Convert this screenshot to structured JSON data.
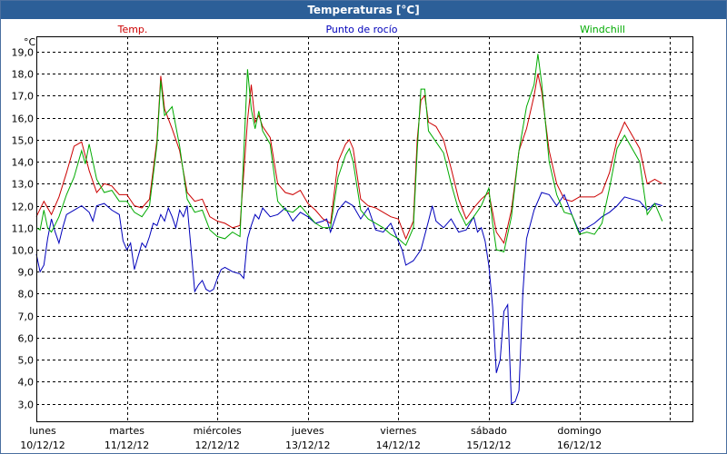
{
  "window": {
    "title": "Temperaturas [°C]"
  },
  "chart_data": {
    "type": "line",
    "title": "Temperaturas [°C]",
    "ylabel": "°C",
    "ylim": [
      2.2,
      19.7
    ],
    "yticks": [
      "3,0",
      "4,0",
      "5,0",
      "6,0",
      "7,0",
      "8,0",
      "9,0",
      "10,0",
      "11,0",
      "12,0",
      "13,0",
      "14,0",
      "15,0",
      "16,0",
      "17,0",
      "18,0",
      "19,0"
    ],
    "xlim_hours": [
      0,
      174
    ],
    "days": [
      {
        "name": "lunes",
        "date": "10/12/12",
        "x": 0
      },
      {
        "name": "martes",
        "date": "11/12/12",
        "x": 24
      },
      {
        "name": "miércoles",
        "date": "12/12/12",
        "x": 48
      },
      {
        "name": "jueves",
        "date": "13/12/12",
        "x": 72
      },
      {
        "name": "viernes",
        "date": "14/12/12",
        "x": 96
      },
      {
        "name": "sábado",
        "date": "15/12/12",
        "x": 120
      },
      {
        "name": "domingo",
        "date": "16/12/12",
        "x": 144
      }
    ],
    "grid": true,
    "legend_placement": "top",
    "series": [
      {
        "name": "Temp.",
        "color": "#cc0000",
        "points": [
          [
            0,
            11.5
          ],
          [
            2,
            12.2
          ],
          [
            4,
            11.6
          ],
          [
            6,
            12.4
          ],
          [
            8,
            13.5
          ],
          [
            10,
            14.7
          ],
          [
            12,
            14.9
          ],
          [
            14,
            13.6
          ],
          [
            16,
            12.6
          ],
          [
            18,
            13.0
          ],
          [
            20,
            12.9
          ],
          [
            22,
            12.5
          ],
          [
            24,
            12.5
          ],
          [
            26,
            12.0
          ],
          [
            28,
            11.9
          ],
          [
            30,
            12.3
          ],
          [
            32,
            15.0
          ],
          [
            33,
            17.9
          ],
          [
            34,
            16.4
          ],
          [
            36,
            15.5
          ],
          [
            38,
            14.5
          ],
          [
            40,
            12.6
          ],
          [
            42,
            12.2
          ],
          [
            44,
            12.3
          ],
          [
            46,
            11.5
          ],
          [
            48,
            11.3
          ],
          [
            50,
            11.2
          ],
          [
            52,
            11.0
          ],
          [
            54,
            11.1
          ],
          [
            56,
            15.9
          ],
          [
            57,
            17.5
          ],
          [
            58,
            15.8
          ],
          [
            59,
            16.1
          ],
          [
            60,
            15.6
          ],
          [
            62,
            15.1
          ],
          [
            64,
            13.0
          ],
          [
            66,
            12.6
          ],
          [
            68,
            12.5
          ],
          [
            70,
            12.7
          ],
          [
            72,
            12.1
          ],
          [
            74,
            11.8
          ],
          [
            76,
            11.4
          ],
          [
            78,
            11.2
          ],
          [
            80,
            14.0
          ],
          [
            82,
            14.8
          ],
          [
            83,
            15.0
          ],
          [
            84,
            14.6
          ],
          [
            86,
            12.3
          ],
          [
            88,
            12.0
          ],
          [
            90,
            11.9
          ],
          [
            92,
            11.7
          ],
          [
            94,
            11.5
          ],
          [
            96,
            11.4
          ],
          [
            98,
            10.5
          ],
          [
            100,
            11.3
          ],
          [
            101,
            15.0
          ],
          [
            102,
            16.8
          ],
          [
            103,
            17.0
          ],
          [
            104,
            15.8
          ],
          [
            106,
            15.6
          ],
          [
            108,
            15.0
          ],
          [
            110,
            13.7
          ],
          [
            112,
            12.3
          ],
          [
            114,
            11.4
          ],
          [
            116,
            11.9
          ],
          [
            118,
            12.3
          ],
          [
            120,
            12.6
          ],
          [
            121,
            11.7
          ],
          [
            122,
            10.8
          ],
          [
            124,
            10.3
          ],
          [
            126,
            11.8
          ],
          [
            128,
            14.5
          ],
          [
            130,
            15.5
          ],
          [
            132,
            17.0
          ],
          [
            133,
            18.0
          ],
          [
            134,
            17.2
          ],
          [
            136,
            14.5
          ],
          [
            138,
            13.0
          ],
          [
            140,
            12.3
          ],
          [
            142,
            12.2
          ],
          [
            144,
            12.4
          ],
          [
            146,
            12.4
          ],
          [
            148,
            12.4
          ],
          [
            150,
            12.6
          ],
          [
            152,
            13.5
          ],
          [
            154,
            15.0
          ],
          [
            156,
            15.8
          ],
          [
            158,
            15.2
          ],
          [
            160,
            14.6
          ],
          [
            162,
            13.0
          ],
          [
            164,
            13.2
          ],
          [
            166,
            13.0
          ]
        ]
      },
      {
        "name": "Punto de rocío",
        "color": "#0000bb",
        "points": [
          [
            0,
            9.8
          ],
          [
            1,
            9.0
          ],
          [
            2,
            9.3
          ],
          [
            3,
            10.5
          ],
          [
            4,
            11.4
          ],
          [
            5,
            10.8
          ],
          [
            6,
            10.3
          ],
          [
            7,
            11.0
          ],
          [
            8,
            11.6
          ],
          [
            10,
            11.8
          ],
          [
            12,
            12.0
          ],
          [
            14,
            11.7
          ],
          [
            15,
            11.3
          ],
          [
            16,
            12.0
          ],
          [
            18,
            12.1
          ],
          [
            20,
            11.8
          ],
          [
            22,
            11.6
          ],
          [
            23,
            10.4
          ],
          [
            24,
            10.0
          ],
          [
            25,
            10.3
          ],
          [
            26,
            9.1
          ],
          [
            27,
            9.7
          ],
          [
            28,
            10.3
          ],
          [
            29,
            10.1
          ],
          [
            30,
            10.6
          ],
          [
            31,
            11.2
          ],
          [
            32,
            11.1
          ],
          [
            33,
            11.6
          ],
          [
            34,
            11.3
          ],
          [
            35,
            11.9
          ],
          [
            36,
            11.5
          ],
          [
            37,
            11.0
          ],
          [
            38,
            11.8
          ],
          [
            39,
            11.5
          ],
          [
            40,
            12.0
          ],
          [
            41,
            10.1
          ],
          [
            42,
            8.1
          ],
          [
            43,
            8.4
          ],
          [
            44,
            8.6
          ],
          [
            45,
            8.2
          ],
          [
            46,
            8.1
          ],
          [
            47,
            8.2
          ],
          [
            48,
            8.7
          ],
          [
            49,
            9.1
          ],
          [
            50,
            9.2
          ],
          [
            52,
            9.0
          ],
          [
            54,
            8.9
          ],
          [
            55,
            8.7
          ],
          [
            56,
            10.5
          ],
          [
            57,
            11.1
          ],
          [
            58,
            11.6
          ],
          [
            59,
            11.4
          ],
          [
            60,
            11.9
          ],
          [
            62,
            11.5
          ],
          [
            64,
            11.6
          ],
          [
            66,
            11.9
          ],
          [
            68,
            11.3
          ],
          [
            70,
            11.7
          ],
          [
            72,
            11.5
          ],
          [
            74,
            11.2
          ],
          [
            76,
            11.3
          ],
          [
            77,
            11.4
          ],
          [
            78,
            10.8
          ],
          [
            80,
            11.8
          ],
          [
            82,
            12.2
          ],
          [
            84,
            12.0
          ],
          [
            86,
            11.4
          ],
          [
            88,
            11.9
          ],
          [
            90,
            10.9
          ],
          [
            92,
            10.8
          ],
          [
            94,
            11.2
          ],
          [
            96,
            10.4
          ],
          [
            97,
            10.0
          ],
          [
            98,
            9.3
          ],
          [
            100,
            9.5
          ],
          [
            102,
            10.0
          ],
          [
            104,
            11.3
          ],
          [
            105,
            12.0
          ],
          [
            106,
            11.3
          ],
          [
            108,
            11.0
          ],
          [
            110,
            11.4
          ],
          [
            112,
            10.8
          ],
          [
            114,
            10.9
          ],
          [
            116,
            11.5
          ],
          [
            117,
            10.8
          ],
          [
            118,
            11.0
          ],
          [
            119,
            10.4
          ],
          [
            120,
            9.3
          ],
          [
            121,
            7.4
          ],
          [
            122,
            4.4
          ],
          [
            123,
            5.0
          ],
          [
            124,
            7.2
          ],
          [
            125,
            7.5
          ],
          [
            126,
            3.0
          ],
          [
            127,
            3.1
          ],
          [
            128,
            3.6
          ],
          [
            129,
            8.0
          ],
          [
            130,
            10.5
          ],
          [
            132,
            11.8
          ],
          [
            134,
            12.6
          ],
          [
            136,
            12.5
          ],
          [
            138,
            12.0
          ],
          [
            140,
            12.5
          ],
          [
            142,
            11.6
          ],
          [
            144,
            10.8
          ],
          [
            146,
            11.0
          ],
          [
            148,
            11.2
          ],
          [
            150,
            11.5
          ],
          [
            152,
            11.7
          ],
          [
            154,
            12.0
          ],
          [
            156,
            12.4
          ],
          [
            158,
            12.3
          ],
          [
            160,
            12.2
          ],
          [
            162,
            11.8
          ],
          [
            164,
            12.1
          ],
          [
            166,
            12.0
          ]
        ]
      },
      {
        "name": "Windchill",
        "color": "#00aa00",
        "points": [
          [
            0,
            11.0
          ],
          [
            1,
            10.9
          ],
          [
            2,
            11.8
          ],
          [
            3,
            11.0
          ],
          [
            4,
            10.8
          ],
          [
            6,
            11.5
          ],
          [
            8,
            12.5
          ],
          [
            10,
            13.3
          ],
          [
            12,
            14.5
          ],
          [
            13,
            13.9
          ],
          [
            14,
            14.8
          ],
          [
            16,
            13.2
          ],
          [
            18,
            12.6
          ],
          [
            20,
            12.7
          ],
          [
            22,
            12.2
          ],
          [
            24,
            12.2
          ],
          [
            26,
            11.7
          ],
          [
            28,
            11.5
          ],
          [
            30,
            12.0
          ],
          [
            32,
            14.8
          ],
          [
            33,
            17.7
          ],
          [
            34,
            16.1
          ],
          [
            36,
            16.5
          ],
          [
            38,
            14.7
          ],
          [
            40,
            12.3
          ],
          [
            42,
            11.7
          ],
          [
            44,
            11.8
          ],
          [
            46,
            10.9
          ],
          [
            48,
            10.6
          ],
          [
            50,
            10.5
          ],
          [
            52,
            10.8
          ],
          [
            54,
            10.6
          ],
          [
            56,
            18.2
          ],
          [
            57,
            16.4
          ],
          [
            58,
            15.5
          ],
          [
            59,
            16.3
          ],
          [
            60,
            15.4
          ],
          [
            62,
            14.8
          ],
          [
            64,
            12.2
          ],
          [
            66,
            11.8
          ],
          [
            68,
            11.7
          ],
          [
            70,
            12.0
          ],
          [
            72,
            11.6
          ],
          [
            74,
            11.2
          ],
          [
            76,
            11.0
          ],
          [
            78,
            11.0
          ],
          [
            80,
            13.3
          ],
          [
            82,
            14.3
          ],
          [
            83,
            14.6
          ],
          [
            84,
            14.0
          ],
          [
            86,
            11.8
          ],
          [
            88,
            11.4
          ],
          [
            90,
            11.2
          ],
          [
            92,
            11.0
          ],
          [
            94,
            10.7
          ],
          [
            96,
            10.5
          ],
          [
            98,
            10.2
          ],
          [
            100,
            11.0
          ],
          [
            101,
            14.5
          ],
          [
            102,
            17.3
          ],
          [
            103,
            17.3
          ],
          [
            104,
            15.4
          ],
          [
            106,
            14.9
          ],
          [
            108,
            14.4
          ],
          [
            110,
            13.0
          ],
          [
            112,
            11.8
          ],
          [
            114,
            11.1
          ],
          [
            116,
            11.5
          ],
          [
            118,
            12.0
          ],
          [
            120,
            12.8
          ],
          [
            121,
            11.2
          ],
          [
            122,
            10.0
          ],
          [
            124,
            9.9
          ],
          [
            126,
            11.5
          ],
          [
            128,
            14.5
          ],
          [
            130,
            16.5
          ],
          [
            132,
            17.5
          ],
          [
            133,
            18.9
          ],
          [
            134,
            17.6
          ],
          [
            136,
            14.0
          ],
          [
            138,
            12.5
          ],
          [
            140,
            11.7
          ],
          [
            142,
            11.6
          ],
          [
            144,
            10.7
          ],
          [
            146,
            10.8
          ],
          [
            148,
            10.7
          ],
          [
            150,
            11.2
          ],
          [
            152,
            12.8
          ],
          [
            154,
            14.6
          ],
          [
            156,
            15.2
          ],
          [
            158,
            14.6
          ],
          [
            160,
            14.0
          ],
          [
            162,
            11.6
          ],
          [
            164,
            12.1
          ],
          [
            166,
            11.3
          ]
        ]
      }
    ]
  }
}
